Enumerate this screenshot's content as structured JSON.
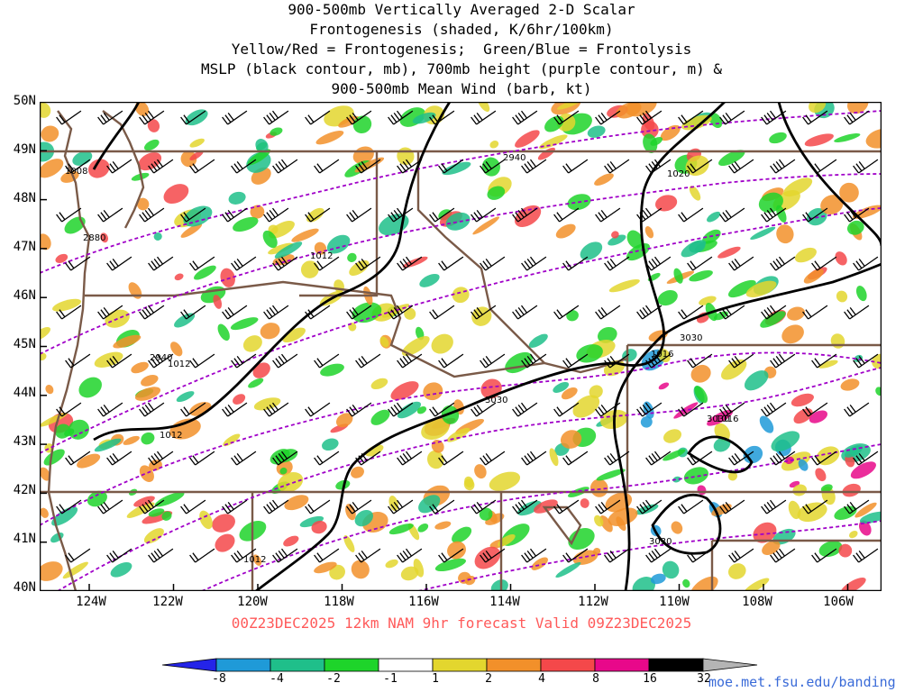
{
  "title": {
    "lines": [
      "900-500mb Vertically Averaged 2-D Scalar",
      "Frontogenesis (shaded, K/6hr/100km)",
      "Yellow/Red = Frontogenesis;  Green/Blue = Frontolysis",
      "MSLP (black contour, mb), 700mb height (purple contour, m) &",
      "900-500mb Mean Wind (barb, kt)"
    ]
  },
  "map": {
    "lat_labels": [
      "50N",
      "49N",
      "48N",
      "47N",
      "46N",
      "45N",
      "44N",
      "43N",
      "42N",
      "41N",
      "40N"
    ],
    "lon_labels": [
      "124W",
      "122W",
      "120W",
      "118W",
      "116W",
      "114W",
      "112W",
      "110W",
      "108W",
      "106W"
    ],
    "mslp_labels": [
      "1008",
      "1012",
      "1012",
      "1012",
      "1012",
      "1016",
      "1016",
      "1020"
    ],
    "height_labels": [
      "2880",
      "2940",
      "2940",
      "3030",
      "3030",
      "3030",
      "3030"
    ],
    "colors": {
      "coast_border": "#7a5a48",
      "mslp": "#000000",
      "height": "#a000c8",
      "barb": "#000000"
    }
  },
  "forecast_line": "00Z23DEC2025 12km NAM 9hr forecast Valid 09Z23DEC2025",
  "colorbar": {
    "labels": [
      "-8",
      "-4",
      "-2",
      "-1",
      "1",
      "2",
      "4",
      "8",
      "16",
      "32"
    ],
    "colors": [
      "#2424e8",
      "#1f9ad8",
      "#1fbf8a",
      "#1ed42a",
      "#ffffff",
      "#e3d62e",
      "#f2902a",
      "#f4484a",
      "#e8088a",
      "#000000",
      "#b4b4b4"
    ]
  },
  "credit": "moe.met.fsu.edu/banding"
}
